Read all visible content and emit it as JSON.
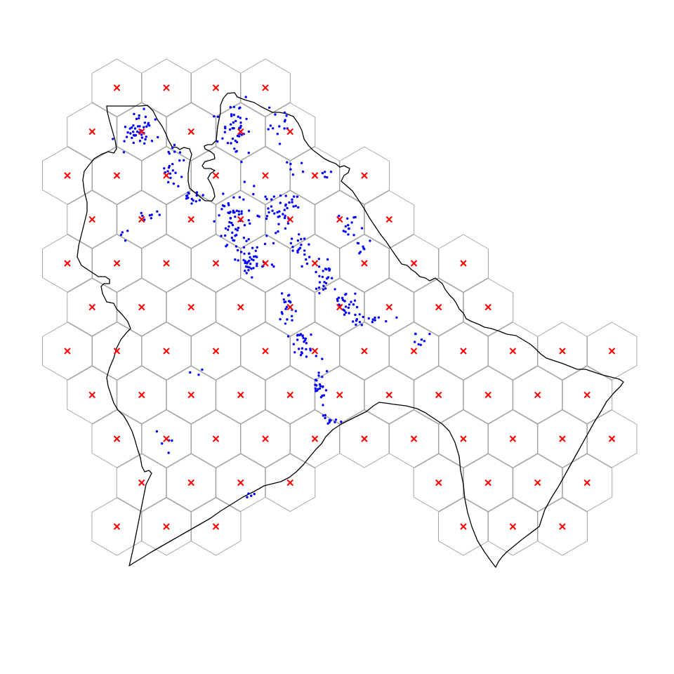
{
  "map": {
    "type": "hexagonal-grid-map",
    "colors": {
      "background": "#ffffff",
      "hex_border": "#a6a6a6",
      "hex_center_marker": "#ff0000",
      "boundary": "#000000",
      "points": "#0000ff"
    },
    "legend": "none",
    "labels": "none",
    "marker_symbols": {
      "hex_center": "x-cross",
      "observation": "dot"
    },
    "hex_count": 86
  }
}
